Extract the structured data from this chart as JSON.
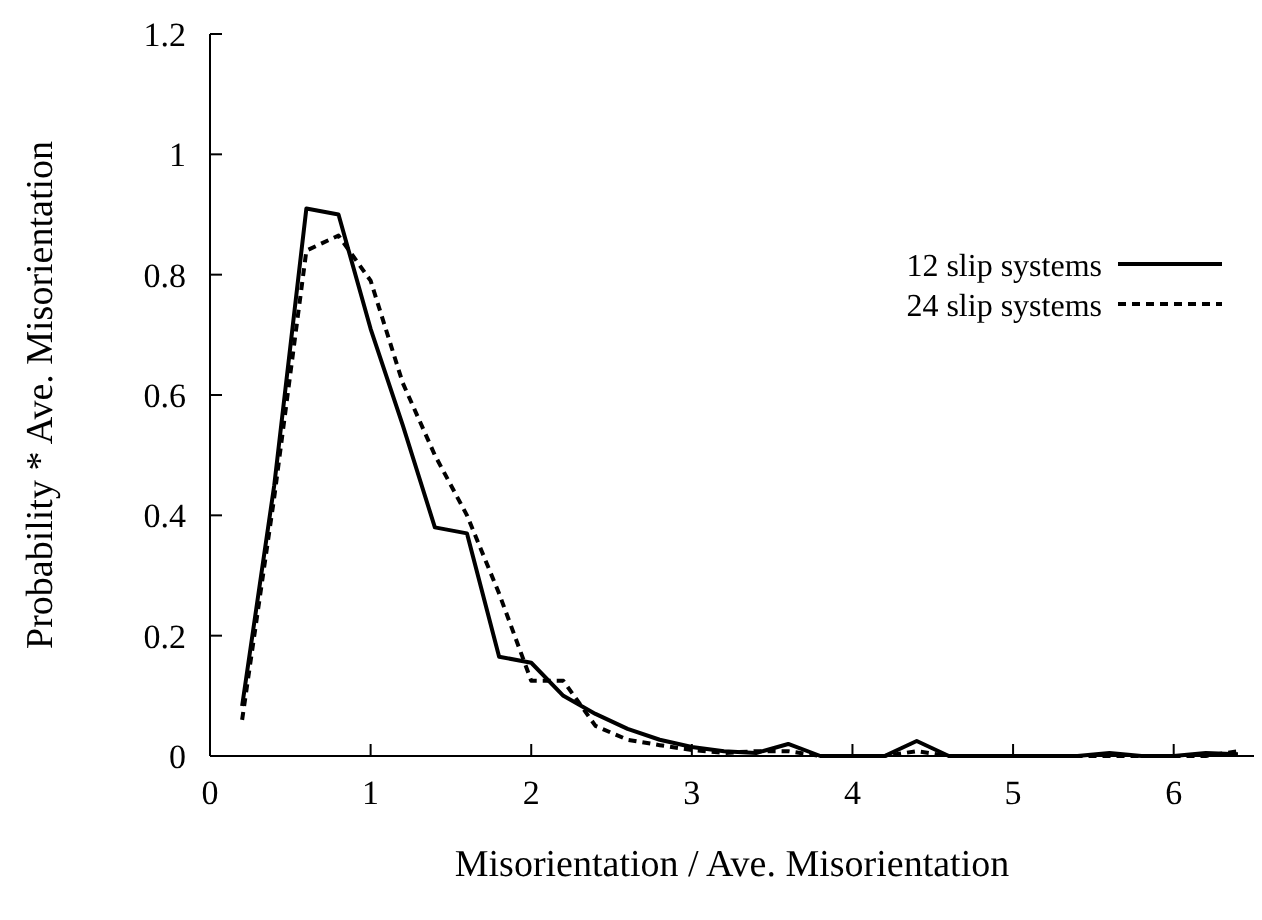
{
  "chart_data": {
    "type": "line",
    "xlabel": "Misorientation / Ave. Misorientation",
    "ylabel": "Probability * Ave. Misorientation",
    "xlim": [
      0,
      6.5
    ],
    "ylim": [
      0,
      1.2
    ],
    "xticks": [
      0,
      1,
      2,
      3,
      4,
      5,
      6
    ],
    "yticks": [
      0,
      0.2,
      0.4,
      0.6,
      0.8,
      1,
      1.2
    ],
    "grid": false,
    "legend": "top right",
    "x": [
      0.2,
      0.4,
      0.6,
      0.8,
      1.0,
      1.2,
      1.4,
      1.6,
      1.8,
      2.0,
      2.2,
      2.4,
      2.6,
      2.8,
      3.0,
      3.2,
      3.4,
      3.6,
      3.8,
      4.0,
      4.2,
      4.4,
      4.6,
      4.8,
      5.0,
      5.2,
      5.4,
      5.6,
      5.8,
      6.0,
      6.2,
      6.4
    ],
    "series": [
      {
        "name": "12 slip systems",
        "color": "#000000",
        "line_style": "solid",
        "values": [
          0.083,
          0.45,
          0.91,
          0.9,
          0.71,
          0.55,
          0.38,
          0.37,
          0.165,
          0.155,
          0.1,
          0.07,
          0.045,
          0.027,
          0.015,
          0.008,
          0.005,
          0.02,
          0,
          0,
          0,
          0.025,
          0,
          0,
          0,
          0,
          0,
          0.005,
          0,
          0,
          0.005,
          0.003
        ]
      },
      {
        "name": "24 slip systems",
        "color": "#000000",
        "line_style": "dashed",
        "values": [
          0.06,
          0.43,
          0.84,
          0.865,
          0.79,
          0.62,
          0.5,
          0.4,
          0.27,
          0.125,
          0.125,
          0.05,
          0.027,
          0.018,
          0.01,
          0.005,
          0.008,
          0.008,
          0,
          0,
          0,
          0.008,
          0,
          0,
          0,
          0,
          0,
          0,
          0,
          0,
          0,
          0.008
        ]
      }
    ]
  }
}
